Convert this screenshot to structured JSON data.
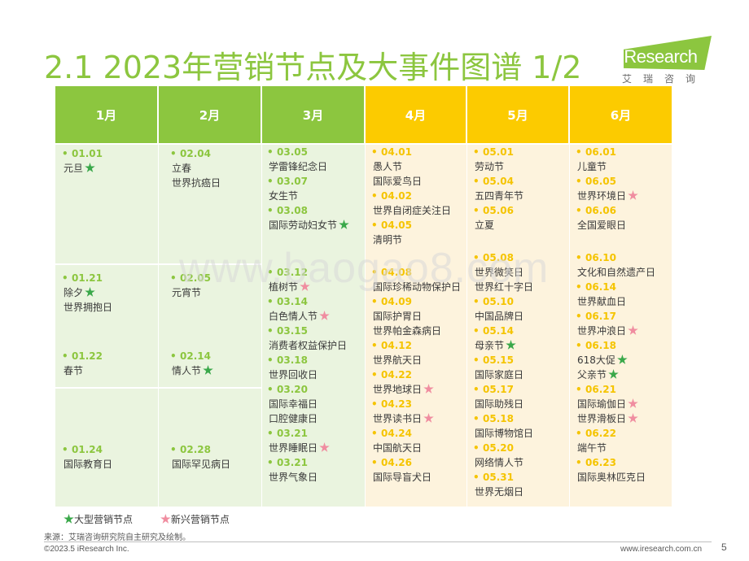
{
  "title": "2.1 2023年营销节点及大事件图谱 1/2",
  "logo": {
    "brand": "iResearch",
    "cn": "艾瑞咨询"
  },
  "watermark": "www.baogao8.com",
  "colors": {
    "green": "#8cc63f",
    "yellow": "#fccb00",
    "green_light": "#eaf4df",
    "yellow_light": "#fdf3dd",
    "big_star": "#3aa84a",
    "new_star": "#f08da0"
  },
  "months": [
    "1月",
    "2月",
    "3月",
    "4月",
    "5月",
    "6月"
  ],
  "jan": {
    "e1": {
      "date": "01.01",
      "name": "元旦",
      "star": "big"
    },
    "e2": {
      "date": "01.21",
      "name": "除夕",
      "name2": "世界拥抱日",
      "star": "big"
    },
    "e3": {
      "date": "01.22",
      "name": "春节"
    },
    "e4": {
      "date": "01.24",
      "name": "国际教育日"
    }
  },
  "feb": {
    "e1": {
      "date": "02.04",
      "name": "立春",
      "name2": "世界抗癌日"
    },
    "e2": {
      "date": "02.05",
      "name": "元宵节"
    },
    "e3": {
      "date": "02.14",
      "name": "情人节",
      "star": "big"
    },
    "e4": {
      "date": "02.28",
      "name": "国际罕见病日"
    }
  },
  "mar": [
    {
      "date": "03.05",
      "name": "学雷锋纪念日"
    },
    {
      "date": "03.07",
      "name": "女生节"
    },
    {
      "date": "03.08",
      "name": "国际劳动妇女节",
      "star": "big"
    },
    {
      "date": "03.12",
      "name": "植树节",
      "star": "new"
    },
    {
      "date": "03.14",
      "name": "白色情人节",
      "star": "new"
    },
    {
      "date": "03.15",
      "name": "消费者权益保护日"
    },
    {
      "date": "03.18",
      "name": "世界回收日"
    },
    {
      "date": "03.20",
      "name": "国际幸福日",
      "name2": "口腔健康日"
    },
    {
      "date": "03.21",
      "name": "世界睡眠日",
      "star": "new"
    },
    {
      "date": "03.21",
      "name": "世界气象日"
    }
  ],
  "apr": [
    {
      "date": "04.01",
      "name": "愚人节",
      "name2": "国际爱鸟日"
    },
    {
      "date": "04.02",
      "name": "世界自闭症关注日"
    },
    {
      "date": "04.05",
      "name": "清明节"
    },
    {
      "date": "04.08",
      "name": "国际珍稀动物保护日"
    },
    {
      "date": "04.09",
      "name": "国际护胃日",
      "name2": "世界帕金森病日"
    },
    {
      "date": "04.12",
      "name": "世界航天日"
    },
    {
      "date": "04.22",
      "name": "世界地球日",
      "star": "new"
    },
    {
      "date": "04.23",
      "name": "世界读书日",
      "star": "new"
    },
    {
      "date": "04.24",
      "name": "中国航天日"
    },
    {
      "date": "04.26",
      "name": "国际导盲犬日"
    }
  ],
  "may": [
    {
      "date": "05.01",
      "name": "劳动节"
    },
    {
      "date": "05.04",
      "name": "五四青年节"
    },
    {
      "date": "05.06",
      "name": "立夏"
    },
    {
      "date": "05.08",
      "name": "世界微笑日",
      "name2": "世界红十字日"
    },
    {
      "date": "05.10",
      "name": "中国品牌日"
    },
    {
      "date": "05.14",
      "name": "母亲节",
      "star": "big"
    },
    {
      "date": "05.15",
      "name": "国际家庭日"
    },
    {
      "date": "05.17",
      "name": "国际助残日"
    },
    {
      "date": "05.18",
      "name": "国际博物馆日"
    },
    {
      "date": "05.20",
      "name": "网络情人节"
    },
    {
      "date": "05.31",
      "name": "世界无烟日"
    }
  ],
  "jun": [
    {
      "date": "06.01",
      "name": "儿童节"
    },
    {
      "date": "06.05",
      "name": "世界环境日",
      "star": "new"
    },
    {
      "date": "06.06",
      "name": "全国爱眼日"
    },
    {
      "date": "06.10",
      "name": "文化和自然遗产日"
    },
    {
      "date": "06.14",
      "name": "世界献血日"
    },
    {
      "date": "06.17",
      "name": "世界冲浪日",
      "star": "new"
    },
    {
      "date": "06.18",
      "name": "618大促",
      "star": "big"
    },
    {
      "date": "",
      "name": "父亲节",
      "star": "big"
    },
    {
      "date": "06.21",
      "name": "国际瑜伽日",
      "star": "new",
      "name2": "世界滑板日",
      "star2": "new"
    },
    {
      "date": "06.22",
      "name": "端午节"
    },
    {
      "date": "06.23",
      "name": "国际奥林匹克日"
    }
  ],
  "legend": {
    "big": "大型营销节点",
    "new": "新兴营销节点"
  },
  "source": "来源：艾瑞咨询研究院自主研究及绘制。",
  "footer_left": "©2023.5 iResearch Inc.",
  "footer_right": "www.iresearch.com.cn",
  "page": "5"
}
